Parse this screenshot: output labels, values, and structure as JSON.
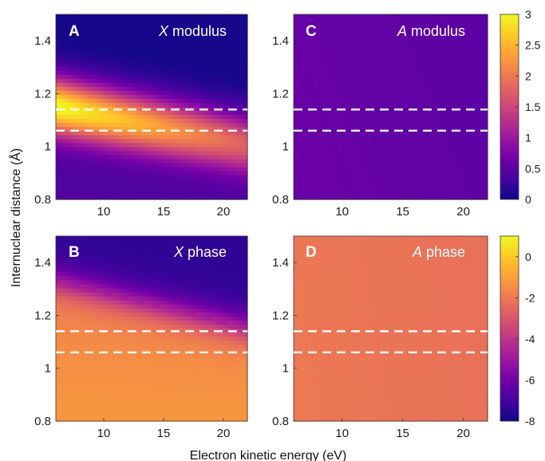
{
  "figure": {
    "xlabel": "Electron kinetic energy (eV)",
    "ylabel": "Internuclear distance (Å)"
  },
  "chart_data": [
    {
      "type": "heatmap",
      "panel": "A",
      "title_var": "X",
      "title_rest": " modulus",
      "xlim": [
        6,
        22
      ],
      "ylim": [
        0.8,
        1.5
      ],
      "xticks": [
        10,
        15,
        20
      ],
      "yticks": [
        0.8,
        1,
        1.2,
        1.4
      ],
      "xtick_labels": [
        "10",
        "15",
        "20"
      ],
      "ytick_labels": [
        "0.8",
        "1",
        "1.2",
        "1.4"
      ],
      "dashed_lines_y": [
        1.14,
        1.06
      ],
      "colorbar": "modulus",
      "approx_value_range": [
        0,
        2.7
      ]
    },
    {
      "type": "heatmap",
      "panel": "B",
      "title_var": "X",
      "title_rest": " phase",
      "xlim": [
        6,
        22
      ],
      "ylim": [
        0.8,
        1.5
      ],
      "xticks": [
        10,
        15,
        20
      ],
      "yticks": [
        0.8,
        1,
        1.2,
        1.4
      ],
      "xtick_labels": [
        "10",
        "15",
        "20"
      ],
      "ytick_labels": [
        "0.8",
        "1",
        "1.2",
        "1.4"
      ],
      "dashed_lines_y": [
        1.14,
        1.06
      ],
      "colorbar": "phase",
      "approx_value_range": [
        -8,
        -1
      ]
    },
    {
      "type": "heatmap",
      "panel": "C",
      "title_var": "A",
      "title_rest": " modulus",
      "xlim": [
        6,
        22
      ],
      "ylim": [
        0.8,
        1.5
      ],
      "xticks": [
        10,
        15,
        20
      ],
      "yticks": [
        0.8,
        1,
        1.2,
        1.4
      ],
      "xtick_labels": [
        "10",
        "15",
        "20"
      ],
      "ytick_labels": [
        "0.8",
        "1",
        "1.2",
        "1.4"
      ],
      "dashed_lines_y": [
        1.14,
        1.06
      ],
      "colorbar": "modulus",
      "approx_value_range": [
        0.45,
        0.6
      ]
    },
    {
      "type": "heatmap",
      "panel": "D",
      "title_var": "A",
      "title_rest": " phase",
      "xlim": [
        6,
        22
      ],
      "ylim": [
        0.8,
        1.5
      ],
      "xticks": [
        10,
        15,
        20
      ],
      "yticks": [
        0.8,
        1,
        1.2,
        1.4
      ],
      "xtick_labels": [
        "10",
        "15",
        "20"
      ],
      "ytick_labels": [
        "0.8",
        "1",
        "1.2",
        "1.4"
      ],
      "dashed_lines_y": [
        1.14,
        1.06
      ],
      "colorbar": "phase",
      "approx_value_range": [
        -2.5,
        -1.9
      ]
    }
  ],
  "colorbars": {
    "modulus": {
      "range": [
        0,
        3
      ],
      "ticks": [
        0,
        0.5,
        1,
        1.5,
        2,
        2.5,
        3
      ],
      "tick_labels": [
        "0",
        "0.5",
        "1",
        "1.5",
        "2",
        "2.5",
        "3"
      ]
    },
    "phase": {
      "range": [
        -8,
        1
      ],
      "ticks": [
        -8,
        -6,
        -4,
        -2,
        0
      ],
      "tick_labels": [
        "-8",
        "-6",
        "-4",
        "-2",
        "0"
      ]
    }
  },
  "colormap": "plasma",
  "colormap_stops": [
    "#0d0887",
    "#46039f",
    "#7201a8",
    "#9c179e",
    "#bd3786",
    "#d8576b",
    "#ed7953",
    "#fb9f3a",
    "#fdca26",
    "#f0f921"
  ],
  "dash_color": "#ffffff"
}
